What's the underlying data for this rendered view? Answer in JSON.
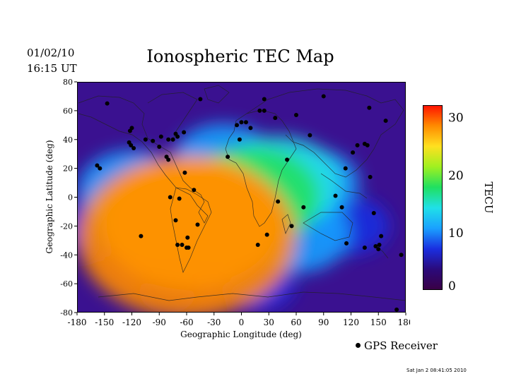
{
  "header": {
    "date": "01/02/10",
    "time": "16:15 UT",
    "title": "Ionospheric TEC Map"
  },
  "map": {
    "xlabel": "Geographic Longitude (deg)",
    "ylabel": "Geographic Latitude (deg)",
    "xticks": [
      "-180",
      "-150",
      "-120",
      "-90",
      "-60",
      "-30",
      "0",
      "30",
      "60",
      "90",
      "120",
      "150",
      "180"
    ],
    "yticks": [
      "80",
      "60",
      "40",
      "20",
      "0",
      "-20",
      "-40",
      "-60",
      "-80"
    ],
    "xlim": [
      -180,
      180
    ],
    "ylim": [
      -80,
      80
    ]
  },
  "colorbar": {
    "label": "TECU",
    "ticks": [
      "30",
      "20",
      "10",
      "0"
    ],
    "range": [
      0,
      32
    ],
    "colors": [
      "#3a0044",
      "#2b0a7a",
      "#1a2ee0",
      "#1aa0ff",
      "#20e0e8",
      "#20e060",
      "#a0f020",
      "#ffe020",
      "#ff8a00",
      "#ff1000"
    ]
  },
  "legend": {
    "label": "GPS Receiver"
  },
  "footer": {
    "timestamp": "Sat Jan  2 08:41:05 2010"
  },
  "chart_data": {
    "type": "heatmap",
    "title": "Ionospheric TEC Map",
    "xlabel": "Geographic Longitude (deg)",
    "ylabel": "Geographic Latitude (deg)",
    "xlim": [
      -180,
      180
    ],
    "ylim": [
      -80,
      80
    ],
    "value_range": [
      0,
      32
    ],
    "value_unit": "TECU",
    "field_blobs": [
      {
        "lon": -60,
        "lat": -28,
        "value": 30
      },
      {
        "lon": -55,
        "lat": -18,
        "value": 24
      },
      {
        "lon": -30,
        "lat": -10,
        "value": 19
      },
      {
        "lon": 10,
        "lat": 0,
        "value": 17
      },
      {
        "lon": 40,
        "lat": 10,
        "value": 15
      },
      {
        "lon": -95,
        "lat": -15,
        "value": 14
      },
      {
        "lon": -120,
        "lat": 5,
        "value": 12
      },
      {
        "lon": 60,
        "lat": -25,
        "value": 12
      },
      {
        "lon": -20,
        "lat": 25,
        "value": 11
      },
      {
        "lon": 80,
        "lat": 10,
        "value": 9
      },
      {
        "lon": 120,
        "lat": -20,
        "value": 7
      },
      {
        "lon": -150,
        "lat": -20,
        "value": 8
      },
      {
        "lon": 20,
        "lat": -60,
        "value": 6
      },
      {
        "lon": -80,
        "lat": -65,
        "value": 4
      }
    ],
    "series": [
      {
        "name": "GPS Receiver",
        "points": [
          [
            -147,
            65
          ],
          [
            -155,
            20
          ],
          [
            -158,
            22
          ],
          [
            -120,
            48
          ],
          [
            -122,
            46
          ],
          [
            -123,
            38
          ],
          [
            -121,
            36
          ],
          [
            -118,
            34
          ],
          [
            -105,
            40
          ],
          [
            -97,
            39
          ],
          [
            -88,
            42
          ],
          [
            -80,
            40
          ],
          [
            -90,
            35
          ],
          [
            -75,
            40
          ],
          [
            -70,
            42
          ],
          [
            -72,
            44
          ],
          [
            -63,
            45
          ],
          [
            -82,
            28
          ],
          [
            -80,
            26
          ],
          [
            -62,
            17
          ],
          [
            -52,
            5
          ],
          [
            -78,
            0
          ],
          [
            -68,
            -1
          ],
          [
            -72,
            -16
          ],
          [
            -110,
            -27
          ],
          [
            -70,
            -33
          ],
          [
            -59,
            -28
          ],
          [
            -65,
            -33
          ],
          [
            -60,
            -35
          ],
          [
            -58,
            -35
          ],
          [
            -48,
            -19
          ],
          [
            -45,
            68
          ],
          [
            -5,
            50
          ],
          [
            0,
            52
          ],
          [
            5,
            52
          ],
          [
            10,
            48
          ],
          [
            -15,
            28
          ],
          [
            -2,
            40
          ],
          [
            20,
            60
          ],
          [
            25,
            60
          ],
          [
            25,
            68
          ],
          [
            37,
            55
          ],
          [
            60,
            57
          ],
          [
            75,
            43
          ],
          [
            50,
            26
          ],
          [
            68,
            -7
          ],
          [
            55,
            -20
          ],
          [
            28,
            -26
          ],
          [
            18,
            -33
          ],
          [
            40,
            -3
          ],
          [
            90,
            70
          ],
          [
            140,
            62
          ],
          [
            158,
            53
          ],
          [
            135,
            37
          ],
          [
            138,
            36
          ],
          [
            122,
            31
          ],
          [
            127,
            36
          ],
          [
            114,
            20
          ],
          [
            103,
            1
          ],
          [
            110,
            -7
          ],
          [
            141,
            14
          ],
          [
            145,
            -11
          ],
          [
            115,
            -32
          ],
          [
            147,
            -34
          ],
          [
            153,
            -27
          ],
          [
            151,
            -33
          ],
          [
            150,
            -36
          ],
          [
            135,
            -35
          ],
          [
            175,
            -40
          ],
          [
            170,
            -78
          ]
        ]
      }
    ]
  }
}
